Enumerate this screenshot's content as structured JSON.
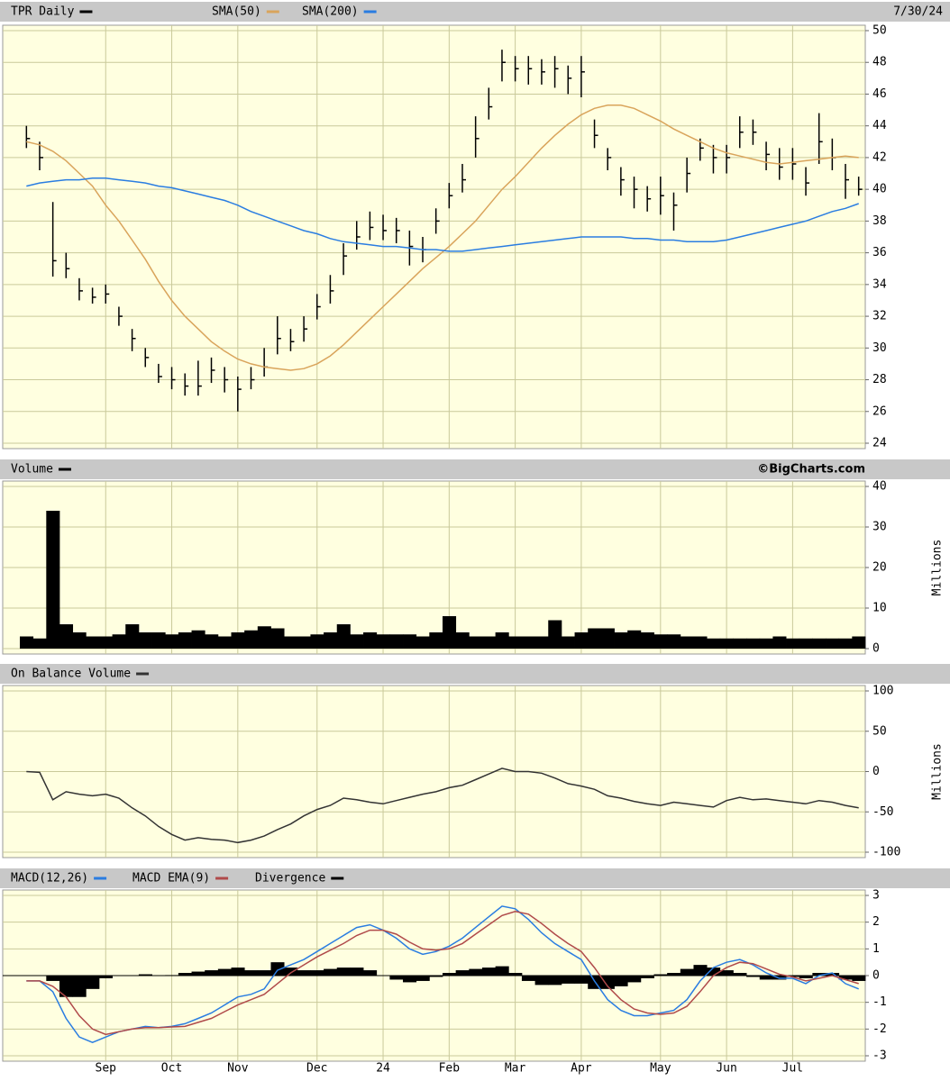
{
  "chart_data": [
    {
      "type": "hlc",
      "date": "7/30/24",
      "series": [
        {
          "name": "TPR Daily",
          "color": "#000000",
          "high": [
            44.0,
            43.0,
            39.2,
            36.0,
            34.4,
            33.8,
            34.0,
            32.6,
            31.2,
            30.0,
            29.0,
            28.8,
            28.4,
            29.2,
            29.4,
            28.8,
            28.2,
            28.8,
            30.0,
            32.0,
            31.2,
            32.0,
            33.4,
            34.6,
            36.6,
            38.0,
            38.6,
            38.4,
            38.2,
            37.4,
            37.0,
            38.8,
            40.4,
            41.6,
            44.6,
            46.4,
            48.8,
            48.4,
            48.4,
            48.2,
            48.4,
            47.8,
            48.4,
            44.4,
            42.6,
            41.4,
            40.8,
            40.2,
            40.8,
            39.8,
            42.0,
            43.2,
            42.8,
            42.8,
            44.6,
            44.4,
            43.0,
            42.6,
            42.6,
            41.4,
            44.8,
            43.2,
            41.6,
            40.8
          ],
          "low": [
            42.6,
            41.2,
            34.5,
            34.4,
            33.0,
            32.8,
            32.8,
            31.4,
            29.8,
            28.8,
            27.8,
            27.4,
            27.0,
            27.0,
            27.8,
            27.2,
            26.0,
            27.4,
            28.2,
            29.6,
            29.8,
            30.4,
            31.8,
            32.8,
            34.6,
            36.2,
            36.8,
            36.8,
            36.6,
            35.2,
            35.4,
            37.2,
            38.8,
            39.8,
            42.0,
            44.4,
            46.8,
            46.8,
            46.6,
            46.6,
            46.4,
            46.0,
            45.8,
            42.6,
            41.2,
            39.6,
            38.8,
            38.6,
            38.4,
            37.4,
            39.8,
            41.8,
            41.0,
            41.0,
            42.6,
            42.8,
            41.2,
            40.6,
            40.6,
            39.6,
            41.6,
            41.2,
            39.4,
            39.6
          ],
          "close": [
            43.2,
            42.0,
            35.5,
            35.0,
            33.6,
            33.2,
            33.4,
            32.0,
            30.6,
            29.4,
            28.2,
            28.0,
            27.6,
            27.6,
            28.6,
            28.0,
            27.4,
            28.0,
            28.8,
            30.6,
            30.4,
            31.2,
            32.6,
            33.6,
            35.8,
            37.0,
            37.6,
            37.4,
            37.4,
            36.4,
            36.2,
            38.0,
            39.6,
            40.6,
            43.2,
            45.2,
            48.0,
            47.6,
            47.6,
            47.4,
            47.6,
            47.0,
            47.4,
            43.4,
            42.0,
            40.6,
            40.0,
            39.4,
            39.6,
            39.0,
            41.0,
            42.6,
            42.0,
            42.0,
            43.6,
            43.6,
            42.2,
            41.4,
            41.6,
            40.4,
            43.0,
            42.0,
            40.6,
            40.0
          ]
        },
        {
          "name": "SMA(50)",
          "color": "#d9a45b",
          "values": [
            43.0,
            42.8,
            42.4,
            41.8,
            41.0,
            40.2,
            39.0,
            38.0,
            36.8,
            35.6,
            34.2,
            33.0,
            32.0,
            31.2,
            30.4,
            29.8,
            29.3,
            29.0,
            28.8,
            28.7,
            28.6,
            28.7,
            29.0,
            29.5,
            30.2,
            31.0,
            31.8,
            32.6,
            33.4,
            34.2,
            35.0,
            35.7,
            36.4,
            37.2,
            38.0,
            39.0,
            40.0,
            40.8,
            41.7,
            42.6,
            43.4,
            44.1,
            44.7,
            45.1,
            45.3,
            45.3,
            45.1,
            44.7,
            44.3,
            43.8,
            43.4,
            43.0,
            42.6,
            42.3,
            42.1,
            41.9,
            41.7,
            41.6,
            41.7,
            41.8,
            41.9,
            42.0,
            42.1,
            42.0
          ]
        },
        {
          "name": "SMA(200)",
          "color": "#2a7de1",
          "values": [
            40.2,
            40.4,
            40.5,
            40.6,
            40.6,
            40.7,
            40.7,
            40.6,
            40.5,
            40.4,
            40.2,
            40.1,
            39.9,
            39.7,
            39.5,
            39.3,
            39.0,
            38.6,
            38.3,
            38.0,
            37.7,
            37.4,
            37.2,
            36.9,
            36.7,
            36.6,
            36.5,
            36.4,
            36.4,
            36.3,
            36.2,
            36.2,
            36.1,
            36.1,
            36.2,
            36.3,
            36.4,
            36.5,
            36.6,
            36.7,
            36.8,
            36.9,
            37.0,
            37.0,
            37.0,
            37.0,
            36.9,
            36.9,
            36.8,
            36.8,
            36.7,
            36.7,
            36.7,
            36.8,
            37.0,
            37.2,
            37.4,
            37.6,
            37.8,
            38.0,
            38.3,
            38.6,
            38.8,
            39.1
          ]
        }
      ],
      "ylim": [
        24,
        50
      ],
      "yticks": [
        24,
        26,
        28,
        30,
        32,
        34,
        36,
        38,
        40,
        42,
        44,
        46,
        48,
        50
      ],
      "grid": true
    },
    {
      "type": "bar",
      "watermark": "©BigCharts.com",
      "y_label": "Millions",
      "series": [
        {
          "name": "Volume",
          "color": "#000000",
          "values": [
            3,
            2.5,
            34,
            6,
            4,
            3,
            3,
            3.5,
            6,
            4,
            4,
            3.5,
            4,
            4.5,
            3.5,
            3,
            4,
            4.5,
            5.5,
            5,
            3,
            3,
            3.5,
            4,
            6,
            3.5,
            4,
            3.5,
            3.5,
            3.5,
            3,
            4,
            8,
            4,
            3,
            3,
            4,
            3,
            3,
            3,
            7,
            3,
            4,
            5,
            5,
            4,
            4.5,
            4,
            3.5,
            3.5,
            3,
            3,
            2.5,
            2.5,
            2.5,
            2.5,
            2.5,
            3,
            2.5,
            2.5,
            2.5,
            2.5,
            2.5,
            3
          ]
        }
      ],
      "ylim": [
        0,
        40
      ],
      "yticks": [
        0,
        10,
        20,
        30,
        40
      ],
      "grid": true
    },
    {
      "type": "line",
      "y_label": "Millions",
      "series": [
        {
          "name": "On Balance Volume",
          "color": "#333333",
          "values": [
            0,
            -1,
            -35,
            -25,
            -28,
            -30,
            -28,
            -33,
            -45,
            -55,
            -68,
            -78,
            -85,
            -82,
            -84,
            -85,
            -88,
            -85,
            -80,
            -72,
            -65,
            -55,
            -47,
            -42,
            -33,
            -35,
            -38,
            -40,
            -36,
            -32,
            -28,
            -25,
            -20,
            -17,
            -10,
            -3,
            4,
            0,
            0,
            -2,
            -8,
            -15,
            -18,
            -22,
            -30,
            -33,
            -37,
            -40,
            -42,
            -38,
            -40,
            -42,
            -44,
            -36,
            -32,
            -35,
            -34,
            -36,
            -38,
            -40,
            -36,
            -38,
            -42,
            -45
          ]
        }
      ],
      "ylim": [
        -100,
        100
      ],
      "yticks": [
        -100,
        -50,
        0,
        50,
        100
      ],
      "grid": true
    },
    {
      "type": "macd",
      "categories": [
        null,
        null,
        null,
        null,
        null,
        null,
        "Sep",
        null,
        null,
        null,
        null,
        "Oct",
        null,
        null,
        null,
        null,
        "Nov",
        null,
        null,
        null,
        null,
        null,
        "Dec",
        null,
        null,
        null,
        null,
        "24",
        null,
        null,
        null,
        null,
        "Feb",
        null,
        null,
        null,
        null,
        "Mar",
        null,
        null,
        null,
        null,
        "Apr",
        null,
        null,
        null,
        null,
        null,
        "May",
        null,
        null,
        null,
        null,
        "Jun",
        null,
        null,
        null,
        null,
        "Jul",
        null,
        null,
        null,
        null,
        null
      ],
      "series": [
        {
          "name": "MACD(12,26)",
          "color": "#2a7de1",
          "values": [
            -0.2,
            -0.2,
            -0.6,
            -1.6,
            -2.3,
            -2.5,
            -2.3,
            -2.1,
            -2.0,
            -1.9,
            -1.95,
            -1.9,
            -1.8,
            -1.6,
            -1.4,
            -1.1,
            -0.8,
            -0.7,
            -0.5,
            0.2,
            0.4,
            0.6,
            0.9,
            1.2,
            1.5,
            1.8,
            1.9,
            1.7,
            1.4,
            1.0,
            0.8,
            0.9,
            1.1,
            1.4,
            1.8,
            2.2,
            2.6,
            2.5,
            2.1,
            1.6,
            1.2,
            0.9,
            0.6,
            -0.2,
            -0.9,
            -1.3,
            -1.5,
            -1.5,
            -1.4,
            -1.3,
            -0.9,
            -0.2,
            0.3,
            0.5,
            0.6,
            0.4,
            0.1,
            -0.1,
            -0.1,
            -0.3,
            0,
            0.1,
            -0.3,
            -0.5
          ]
        },
        {
          "name": "MACD EMA(9)",
          "color": "#b04a4a",
          "values": [
            -0.2,
            -0.2,
            -0.4,
            -0.8,
            -1.5,
            -2.0,
            -2.2,
            -2.1,
            -2.0,
            -1.95,
            -1.95,
            -1.92,
            -1.9,
            -1.75,
            -1.6,
            -1.35,
            -1.1,
            -0.9,
            -0.7,
            -0.3,
            0.1,
            0.4,
            0.7,
            0.95,
            1.2,
            1.5,
            1.7,
            1.7,
            1.55,
            1.25,
            1.0,
            0.95,
            1.0,
            1.2,
            1.55,
            1.9,
            2.25,
            2.4,
            2.3,
            1.95,
            1.55,
            1.2,
            0.9,
            0.3,
            -0.4,
            -0.9,
            -1.25,
            -1.4,
            -1.45,
            -1.4,
            -1.15,
            -0.6,
            0,
            0.3,
            0.5,
            0.45,
            0.25,
            0.05,
            -0.05,
            -0.2,
            -0.1,
            0,
            -0.15,
            -0.3
          ]
        },
        {
          "name": "Divergence",
          "color": "#000000",
          "type": "bar",
          "values": [
            0,
            0,
            -0.2,
            -0.8,
            -0.8,
            -0.5,
            -0.1,
            0,
            0,
            0.05,
            0,
            0.02,
            0.1,
            0.15,
            0.2,
            0.25,
            0.3,
            0.2,
            0.2,
            0.5,
            0.3,
            0.2,
            0.2,
            0.25,
            0.3,
            0.3,
            0.2,
            0,
            -0.15,
            -0.25,
            -0.2,
            -0.05,
            0.1,
            0.2,
            0.25,
            0.3,
            0.35,
            0.1,
            -0.2,
            -0.35,
            -0.35,
            -0.3,
            -0.3,
            -0.5,
            -0.5,
            -0.4,
            -0.25,
            -0.1,
            0.05,
            0.1,
            0.25,
            0.4,
            0.3,
            0.2,
            0.1,
            -0.05,
            -0.15,
            -0.15,
            -0.05,
            -0.1,
            0.1,
            0.1,
            -0.15,
            -0.2
          ]
        }
      ],
      "ylim": [
        -3,
        3
      ],
      "yticks": [
        -3,
        -2,
        -1,
        0,
        1,
        2,
        3
      ],
      "grid": true
    }
  ]
}
